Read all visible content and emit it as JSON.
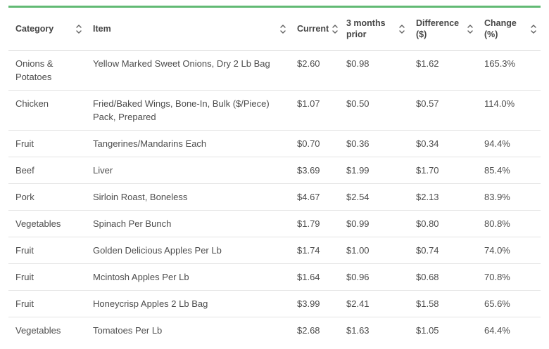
{
  "colors": {
    "accent_green": "#62ba74",
    "header_border": "#d8d8d8",
    "row_border": "#e4e4e4",
    "text": "#4d4d4d"
  },
  "table": {
    "columns": [
      {
        "label": "Category"
      },
      {
        "label": "Item"
      },
      {
        "label": "Current"
      },
      {
        "label": "3 months prior"
      },
      {
        "label": "Difference ($)"
      },
      {
        "label": "Change (%)"
      }
    ],
    "rows": [
      [
        "Onions & Potatoes",
        "Yellow Marked Sweet Onions, Dry 2 Lb Bag",
        "$2.60",
        "$0.98",
        "$1.62",
        "165.3%"
      ],
      [
        "Chicken",
        "Fried/Baked Wings, Bone-In, Bulk ($/Piece) Pack, Prepared",
        "$1.07",
        "$0.50",
        "$0.57",
        "114.0%"
      ],
      [
        "Fruit",
        "Tangerines/Mandarins Each",
        "$0.70",
        "$0.36",
        "$0.34",
        "94.4%"
      ],
      [
        "Beef",
        "Liver",
        "$3.69",
        "$1.99",
        "$1.70",
        "85.4%"
      ],
      [
        "Pork",
        "Sirloin Roast, Boneless",
        "$4.67",
        "$2.54",
        "$2.13",
        "83.9%"
      ],
      [
        "Vegetables",
        "Spinach Per Bunch",
        "$1.79",
        "$0.99",
        "$0.80",
        "80.8%"
      ],
      [
        "Fruit",
        "Golden Delicious Apples Per Lb",
        "$1.74",
        "$1.00",
        "$0.74",
        "74.0%"
      ],
      [
        "Fruit",
        "Mcintosh Apples Per Lb",
        "$1.64",
        "$0.96",
        "$0.68",
        "70.8%"
      ],
      [
        "Fruit",
        "Honeycrisp Apples 2 Lb Bag",
        "$3.99",
        "$2.41",
        "$1.58",
        "65.6%"
      ],
      [
        "Vegetables",
        "Tomatoes Per Lb",
        "$2.68",
        "$1.63",
        "$1.05",
        "64.4%"
      ]
    ]
  }
}
